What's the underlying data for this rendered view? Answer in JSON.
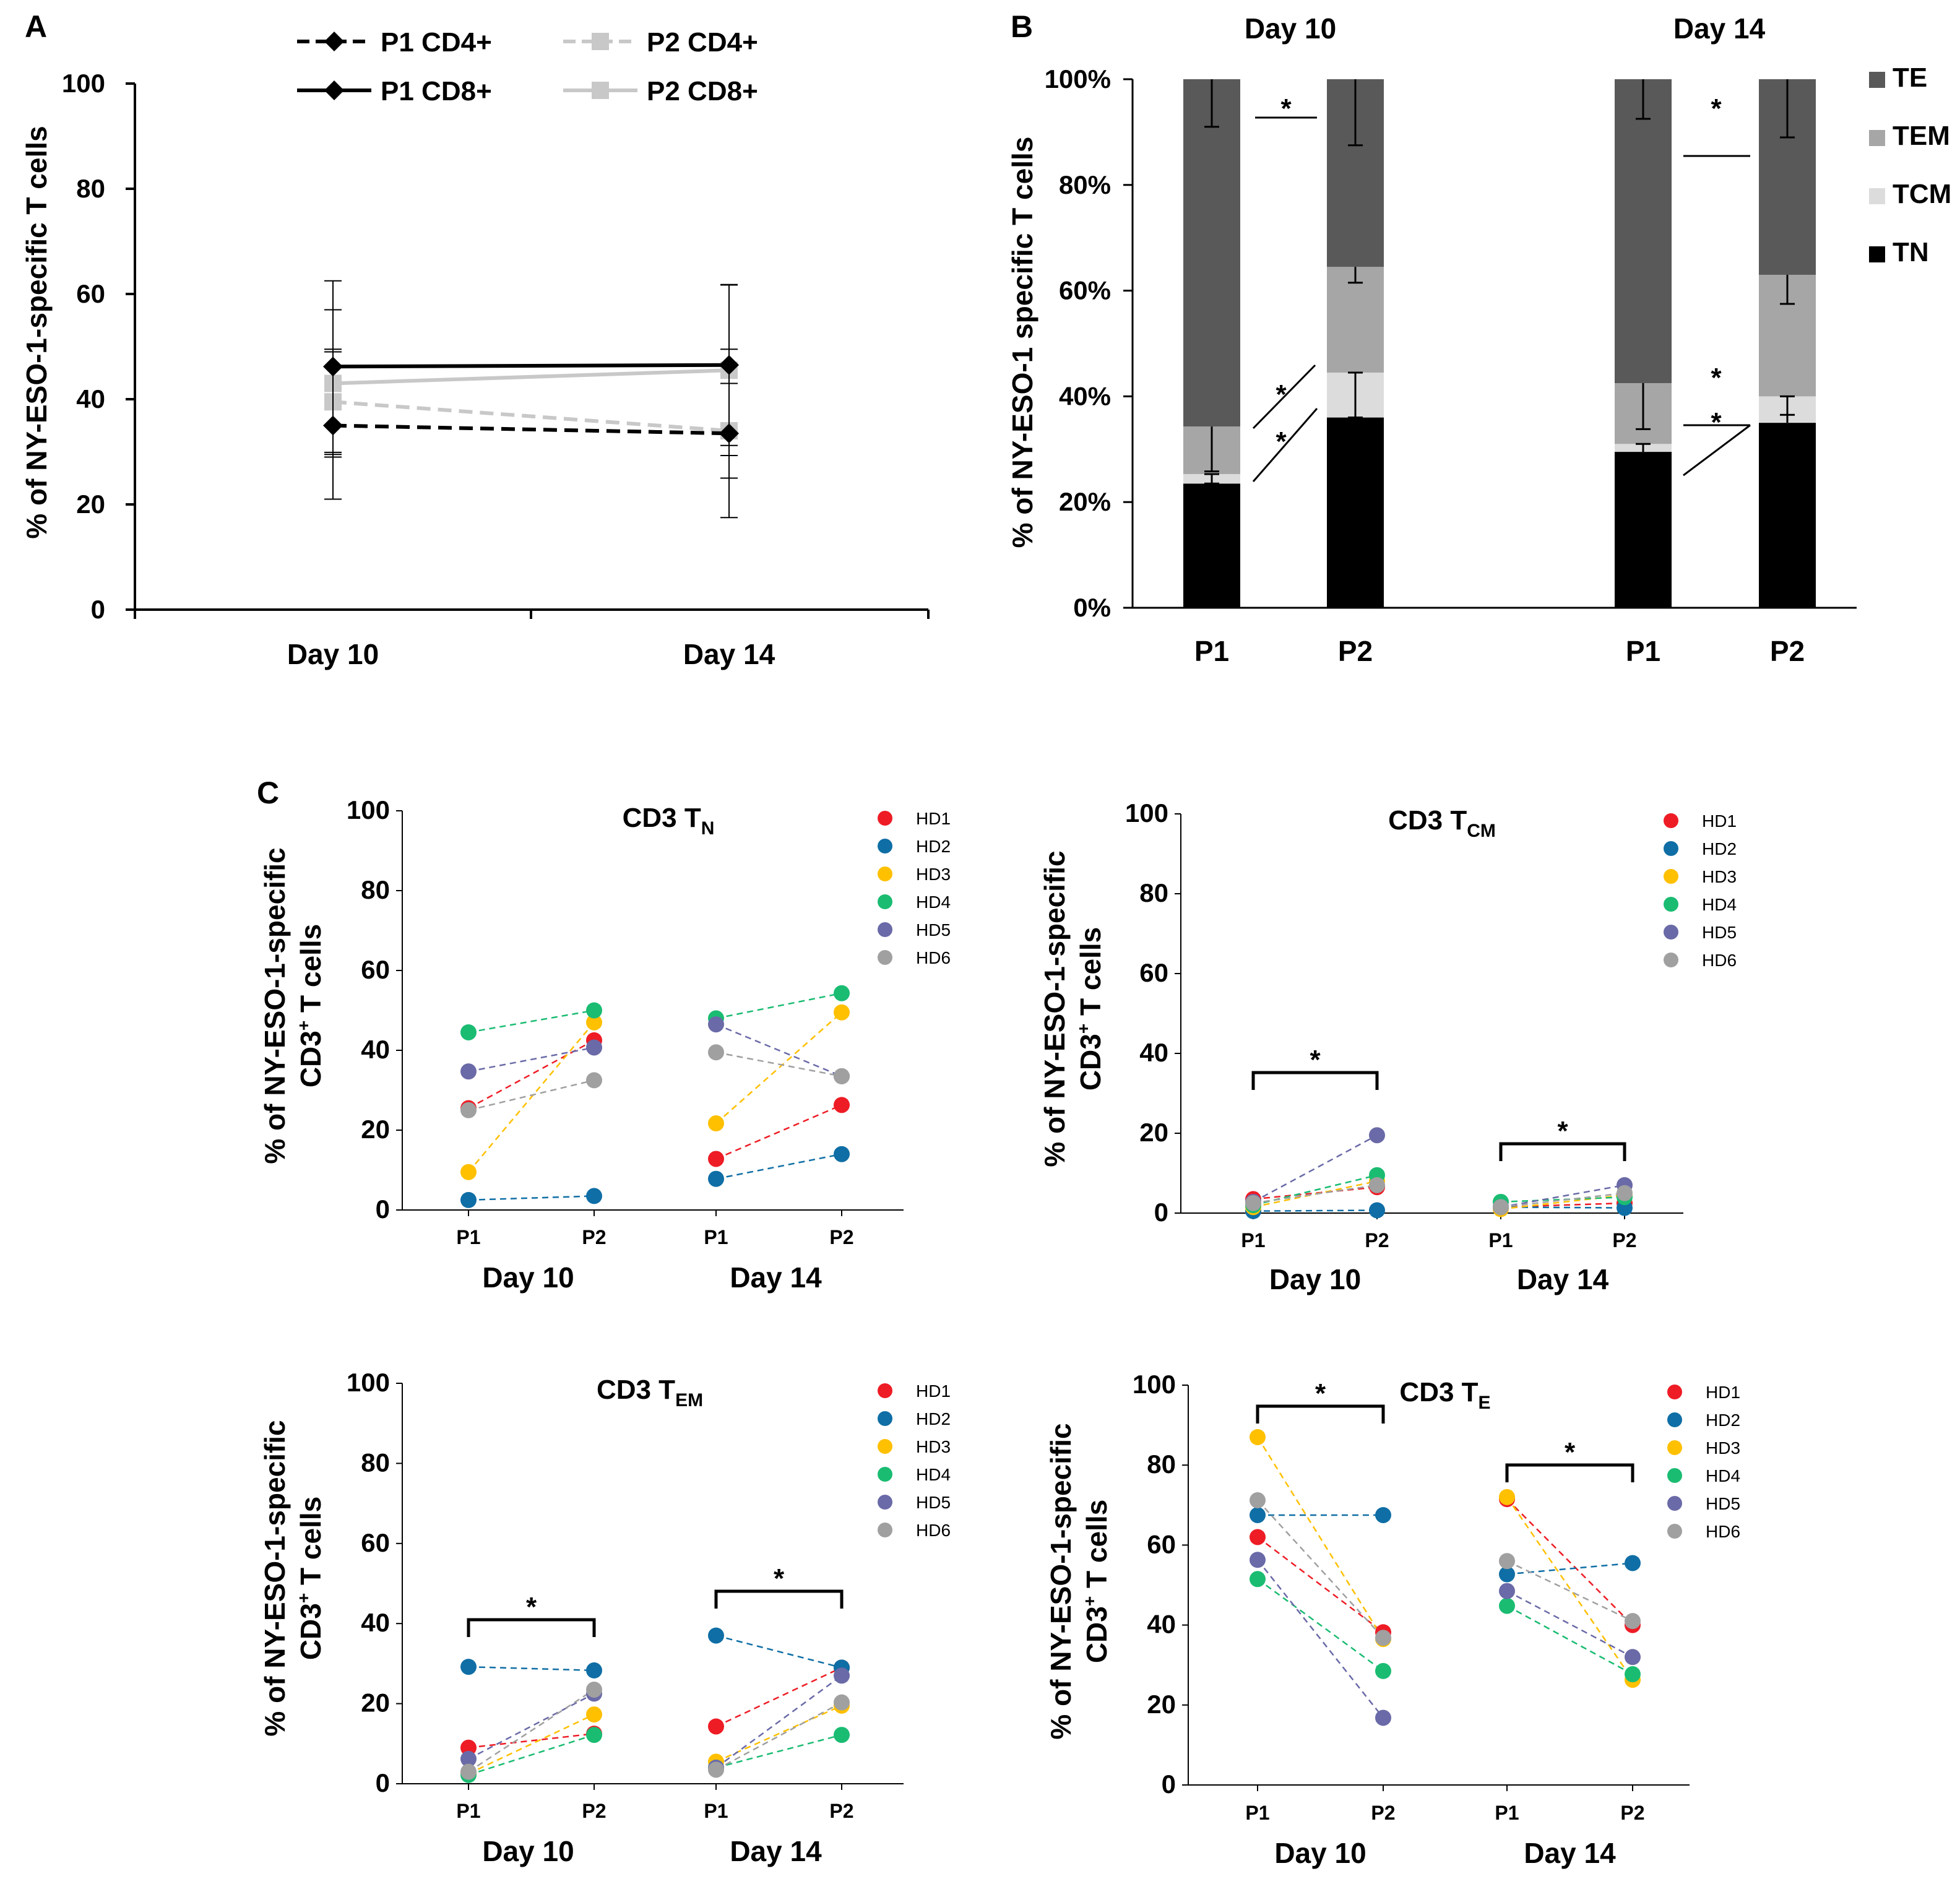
{
  "chart_data": [
    {
      "panel": "A",
      "type": "line",
      "ylabel": "% of NY-ESO-1-specific T cells",
      "categories": [
        "Day 10",
        "Day 14"
      ],
      "ylim": [
        0,
        100
      ],
      "yticks": [
        0,
        20,
        40,
        60,
        80,
        100
      ],
      "series": [
        {
          "name": "P1 CD4+",
          "values": [
            35,
            33.5
          ],
          "errors": [
            14,
            16
          ],
          "color": "#000000",
          "style": "dashed",
          "marker": "diamond"
        },
        {
          "name": "P2 CD4+",
          "values": [
            39.5,
            34
          ],
          "errors": [
            10,
            9
          ],
          "color": "#c8c8c8",
          "style": "dashed",
          "marker": "square"
        },
        {
          "name": "P1 CD8+",
          "values": [
            46.2,
            46.5
          ],
          "errors": [
            16.3,
            15.3
          ],
          "color": "#000000",
          "style": "solid",
          "marker": "diamond"
        },
        {
          "name": "P2 CD8+",
          "values": [
            43,
            45.5
          ],
          "errors": [
            14,
            16.2
          ],
          "color": "#c8c8c8",
          "style": "solid",
          "marker": "square"
        }
      ]
    },
    {
      "panel": "B",
      "type": "bar",
      "stacked": true,
      "ylabel": "% of NY-ESO-1 specific T cells",
      "ylim": [
        0,
        100
      ],
      "yticks": [
        "0%",
        "20%",
        "40%",
        "60%",
        "80%",
        "100%"
      ],
      "groups": [
        "Day 10",
        "Day 14"
      ],
      "categories": [
        "P1",
        "P2",
        "P1",
        "P2"
      ],
      "series": [
        {
          "name": "TN",
          "color": "#000000",
          "values": [
            23.5,
            36,
            29.5,
            35
          ]
        },
        {
          "name": "TCM",
          "color": "#dcdcdc",
          "values": [
            1.8,
            8.5,
            1.5,
            5
          ]
        },
        {
          "name": "TEM",
          "color": "#a6a6a6",
          "values": [
            9,
            20,
            11.5,
            23
          ]
        },
        {
          "name": "TE",
          "color": "#595959",
          "values": [
            65.7,
            35.5,
            57.5,
            37
          ]
        }
      ],
      "legend_order": [
        "TE",
        "TEM",
        "TCM",
        "TN"
      ],
      "annotations": [
        "*",
        "*",
        "*",
        "*",
        "*",
        "*"
      ]
    },
    {
      "panel": "C",
      "type": "scatter",
      "subplots": [
        {
          "title": "CD3 T",
          "subscript": "N",
          "values": {
            "HD1": [
              25.5,
              42.5,
              12.8,
              26.3
            ],
            "HD2": [
              2.5,
              3.5,
              7.8,
              14
            ],
            "HD3": [
              9.5,
              47,
              21.7,
              49.5
            ],
            "HD4": [
              44.5,
              50,
              48,
              54.3
            ],
            "HD5": [
              34.7,
              40.7,
              46.5,
              33.5
            ],
            "HD6": [
              25,
              32.5,
              39.5,
              33.5
            ]
          },
          "brackets": []
        },
        {
          "title": "CD3 T",
          "subscript": "CM",
          "values": {
            "HD1": [
              3.5,
              6.5,
              1.5,
              2.5
            ],
            "HD2": [
              0.5,
              0.7,
              1.5,
              1.3
            ],
            "HD3": [
              1.5,
              8,
              1,
              4.5
            ],
            "HD4": [
              2,
              9.5,
              2.8,
              4
            ],
            "HD5": [
              2.8,
              19.5,
              1.5,
              7
            ],
            "HD6": [
              2.5,
              7,
              1.5,
              5
            ]
          },
          "brackets": [
            "*",
            "*"
          ]
        },
        {
          "title": "CD3 T",
          "subscript": "EM",
          "values": {
            "HD1": [
              9,
              12.5,
              14.3,
              29
            ],
            "HD2": [
              29.2,
              28.3,
              37,
              29
            ],
            "HD3": [
              2.5,
              17.3,
              5.5,
              19.5
            ],
            "HD4": [
              2.2,
              12.2,
              4,
              12.2
            ],
            "HD5": [
              6.2,
              22.5,
              4,
              27
            ],
            "HD6": [
              3,
              23.5,
              3.5,
              20.3
            ]
          },
          "brackets": [
            "*",
            "*"
          ]
        },
        {
          "title": "CD3 T",
          "subscript": "E",
          "values": {
            "HD1": [
              62,
              38.2,
              71.5,
              40
            ],
            "HD2": [
              67.5,
              67.5,
              52.7,
              55.5
            ],
            "HD3": [
              87,
              36.5,
              72,
              26.3
            ],
            "HD4": [
              51.5,
              28.5,
              44.8,
              27.7
            ],
            "HD5": [
              56.3,
              16.8,
              48.5,
              32
            ],
            "HD6": [
              71.2,
              36.8,
              56,
              41
            ]
          },
          "brackets": [
            "*",
            "*"
          ]
        }
      ],
      "ylabel_line1": "% of NY-ESO-1-specific",
      "ylabel_line2": "CD3",
      "ylabel_sup": "+",
      "ylabel_line2b": " T cells",
      "xticks": [
        "P1",
        "P2",
        "P1",
        "P2"
      ],
      "groups": [
        "Day 10",
        "Day 14"
      ],
      "yticks": [
        0,
        20,
        40,
        60,
        80,
        100
      ],
      "donors": [
        "HD1",
        "HD2",
        "HD3",
        "HD4",
        "HD5",
        "HD6"
      ],
      "donor_colors": [
        "#ee1c25",
        "#0f6ea5",
        "#ffc000",
        "#1abc72",
        "#6a6aa8",
        "#a0a0a0"
      ]
    }
  ],
  "panel_tags": [
    "A",
    "B",
    "C"
  ]
}
